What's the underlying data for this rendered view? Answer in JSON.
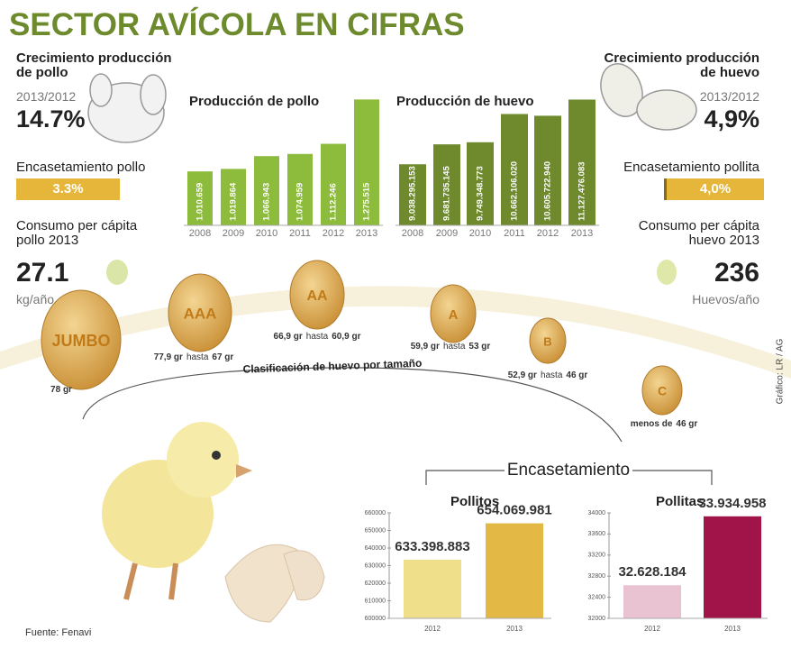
{
  "title": "SECTOR AVÍCOLA EN CIFRAS",
  "left_stats": {
    "growth_title": "Crecimiento producción de pollo",
    "growth_period": "2013/2012",
    "growth_value": "14.7%",
    "housing_title": "Encasetamiento pollo",
    "housing_value": "3.3%",
    "consumption_title": "Consumo per cápita pollo 2013",
    "consumption_value": "27.1",
    "consumption_unit": "kg/año"
  },
  "right_stats": {
    "growth_title": "Crecimiento producción de huevo",
    "growth_period": "2013/2012",
    "growth_value": "4,9%",
    "housing_title": "Encasetamiento pollita",
    "housing_value": "4,0%",
    "consumption_title": "Consumo per cápita huevo 2013",
    "consumption_value": "236",
    "consumption_unit": "Huevos/año"
  },
  "egg_classification": {
    "title": "Clasificación de huevo por tamaño",
    "grades": [
      {
        "grade": "JUMBO",
        "size": [
          "78 gr"
        ]
      },
      {
        "grade": "AAA",
        "size": [
          "77,9 gr",
          "hasta",
          "67 gr"
        ]
      },
      {
        "grade": "AA",
        "size": [
          "66,9 gr",
          "hasta",
          "60,9 gr"
        ]
      },
      {
        "grade": "A",
        "size": [
          "59,9 gr",
          "hasta",
          "53 gr"
        ]
      },
      {
        "grade": "B",
        "size": [
          "52,9 gr",
          "hasta",
          "46 gr"
        ]
      },
      {
        "grade": "C",
        "size": [
          "menos de",
          "46 gr"
        ]
      }
    ]
  },
  "encasetamiento_title": "Encasetamiento",
  "credit": "Gráfico: LR / AG",
  "source": "Fuente: Fenavi",
  "chart_data": [
    {
      "type": "bar",
      "title": "Producción de pollo",
      "categories": [
        "2008",
        "2009",
        "2010",
        "2011",
        "2012",
        "2013"
      ],
      "values": [
        1010659,
        1019864,
        1066943,
        1074959,
        1112246,
        1275515
      ],
      "value_labels": [
        "1.010.659",
        "1.019.864",
        "1.066.943",
        "1.074.959",
        "1.112.246",
        "1.275.515"
      ],
      "colors": [
        "#8dbb3c",
        "#8dbb3c",
        "#8dbb3c",
        "#8dbb3c",
        "#8dbb3c",
        "#8dbb3c"
      ],
      "ylim": [
        812000,
        1290000
      ]
    },
    {
      "type": "bar",
      "title": "Producción de huevo",
      "categories": [
        "2008",
        "2009",
        "2010",
        "2011",
        "2012",
        "2013"
      ],
      "values": [
        9038295153,
        9681735145,
        9749348773,
        10662106020,
        10605722940,
        11127476083
      ],
      "value_labels": [
        "9.038.295.153",
        "9.681.735.145",
        "9.749.348.773",
        "10.662.106.020",
        "10.605.722.940",
        "11.127.476.083"
      ],
      "colors": [
        "#6e8a2c",
        "#6e8a2c",
        "#6e8a2c",
        "#6e8a2c",
        "#6e8a2c",
        "#6e8a2c"
      ],
      "ylim": [
        7065000000,
        11200000000
      ]
    },
    {
      "type": "bar",
      "title": "Pollitos",
      "categories": [
        "2012",
        "2013"
      ],
      "values": [
        633398.883,
        654069.981
      ],
      "value_labels": [
        "633.398.883",
        "654.069.981"
      ],
      "colors": [
        "#efde8a",
        "#e3b845"
      ],
      "ylim": [
        600000,
        660000
      ],
      "yticks": [
        600000,
        610000,
        620000,
        630000,
        640000,
        650000,
        660000
      ]
    },
    {
      "type": "bar",
      "title": "Pollitas",
      "categories": [
        "2012",
        "2013"
      ],
      "values": [
        32628.184,
        33934.958
      ],
      "value_labels": [
        "32.628.184",
        "33.934.958"
      ],
      "colors": [
        "#eac3d3",
        "#a0144a"
      ],
      "ylim": [
        32000,
        34000
      ],
      "yticks": [
        32000,
        32400,
        32800,
        33200,
        33600,
        34000
      ]
    }
  ]
}
